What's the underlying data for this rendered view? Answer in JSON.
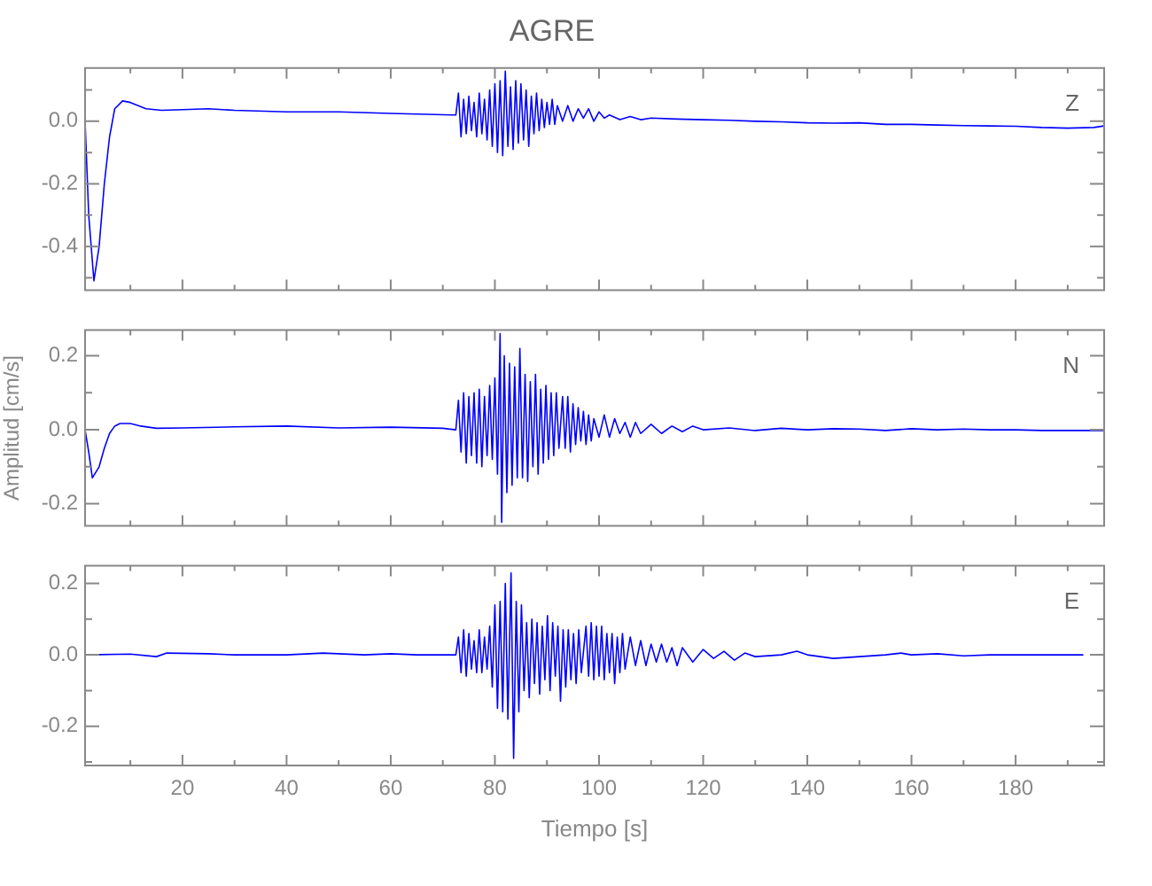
{
  "chart_data": [
    {
      "type": "line",
      "title": "AGRE",
      "annotations": [
        "Z"
      ],
      "tick_labels": "y",
      "marker": "none",
      "xlim": [
        1.3,
        197
      ],
      "xticks": [
        {
          "value": 10,
          "label": null
        },
        20,
        {
          "value": 30,
          "label": null
        },
        40,
        {
          "value": 50,
          "label": null
        },
        60,
        {
          "value": 70,
          "label": null
        },
        80,
        {
          "value": 90,
          "label": null
        },
        100,
        {
          "value": 110,
          "label": null
        },
        120,
        {
          "value": 130,
          "label": null
        },
        140,
        {
          "value": 150,
          "label": null
        },
        160,
        {
          "value": 170,
          "label": null
        },
        180,
        {
          "value": 190,
          "label": null
        }
      ],
      "ylim": [
        -0.54,
        0.17
      ],
      "yticks": [
        {
          "value": 0.1,
          "label": null
        },
        {
          "value": 0,
          "label": "0.0"
        },
        {
          "value": -0.1,
          "label": null
        },
        -0.2,
        {
          "value": -0.3,
          "label": null
        },
        -0.4,
        {
          "value": -0.5,
          "label": null
        }
      ],
      "series": [
        {
          "color": "#0000ff",
          "x": [
            1.3,
            2,
            3,
            4,
            5,
            6,
            7,
            8.5,
            10,
            13,
            16,
            20,
            25,
            30,
            40,
            50,
            60,
            72,
            72.5,
            73,
            73.5,
            74,
            74.5,
            75,
            75.5,
            76,
            76.5,
            77,
            77.5,
            78,
            78.5,
            79,
            79.5,
            80,
            80.5,
            81,
            81.5,
            82,
            82.5,
            83,
            83.5,
            84,
            84.5,
            85,
            85.5,
            86,
            86.5,
            87,
            87.5,
            88,
            88.5,
            89,
            89.5,
            90,
            90.5,
            91,
            91.5,
            92,
            93,
            94,
            95,
            96,
            97,
            98,
            99,
            100,
            101,
            102,
            104,
            106,
            108,
            110,
            115,
            120,
            125,
            130,
            135,
            140,
            145,
            150,
            155,
            160,
            165,
            170,
            175,
            180,
            185,
            190,
            195,
            197
          ],
          "values": [
            0.0,
            -0.3,
            -0.51,
            -0.4,
            -0.2,
            -0.05,
            0.04,
            0.065,
            0.06,
            0.04,
            0.035,
            0.037,
            0.04,
            0.035,
            0.03,
            0.03,
            0.025,
            0.02,
            0.02,
            0.09,
            -0.05,
            0.07,
            -0.04,
            0.08,
            -0.03,
            0.06,
            -0.05,
            0.09,
            -0.04,
            0.07,
            -0.06,
            0.1,
            -0.08,
            0.12,
            -0.1,
            0.13,
            -0.11,
            0.16,
            -0.08,
            0.11,
            -0.09,
            0.13,
            -0.07,
            0.12,
            -0.06,
            0.1,
            -0.08,
            0.08,
            -0.04,
            0.09,
            -0.03,
            0.07,
            -0.02,
            0.06,
            -0.01,
            0.07,
            -0.01,
            0.05,
            0.0,
            0.05,
            0.0,
            0.04,
            0.01,
            0.04,
            0.0,
            0.03,
            0.01,
            0.02,
            0.005,
            0.015,
            0.005,
            0.01,
            0.007,
            0.005,
            0.003,
            0.0,
            -0.002,
            -0.005,
            -0.006,
            -0.005,
            -0.01,
            -0.01,
            -0.012,
            -0.014,
            -0.015,
            -0.016,
            -0.02,
            -0.022,
            -0.02,
            -0.015
          ]
        }
      ]
    },
    {
      "type": "line",
      "ylabel": "Amplitud [cm/s]",
      "annotations": [
        "N"
      ],
      "tick_labels": "y",
      "marker": "none",
      "xlim": [
        1.3,
        197
      ],
      "xticks": [
        {
          "value": 10,
          "label": null
        },
        20,
        {
          "value": 30,
          "label": null
        },
        40,
        {
          "value": 50,
          "label": null
        },
        60,
        {
          "value": 70,
          "label": null
        },
        80,
        {
          "value": 90,
          "label": null
        },
        100,
        {
          "value": 110,
          "label": null
        },
        120,
        {
          "value": 130,
          "label": null
        },
        140,
        {
          "value": 150,
          "label": null
        },
        160,
        {
          "value": 170,
          "label": null
        },
        180,
        {
          "value": 190,
          "label": null
        }
      ],
      "ylim": [
        -0.26,
        0.27
      ],
      "yticks": [
        0.2,
        {
          "value": 0.1,
          "label": null
        },
        {
          "value": 0,
          "label": "0.0"
        },
        {
          "value": -0.1,
          "label": null
        },
        -0.2
      ],
      "series": [
        {
          "color": "#0000ff",
          "x": [
            1.3,
            2,
            2.7,
            4,
            5,
            6,
            7,
            8,
            10,
            12,
            15,
            20,
            30,
            40,
            50,
            60,
            70,
            72.5,
            73,
            73.5,
            74,
            74.5,
            75,
            75.5,
            76,
            76.5,
            77,
            77.5,
            78,
            78.5,
            79,
            79.5,
            80,
            80.5,
            81,
            81.3,
            81.8,
            82.3,
            82.8,
            83.3,
            83.8,
            84.3,
            84.8,
            85.3,
            85.8,
            86.3,
            86.8,
            87.3,
            87.8,
            88.3,
            88.8,
            89.3,
            89.8,
            90.3,
            90.8,
            91.3,
            91.8,
            92.3,
            93,
            93.5,
            94,
            94.5,
            95,
            95.5,
            96,
            96.5,
            97,
            97.5,
            98,
            98.5,
            99,
            100,
            101,
            102,
            103,
            104,
            105,
            106,
            107,
            108,
            110,
            112,
            114,
            116,
            118,
            120,
            125,
            130,
            135,
            140,
            145,
            150,
            155,
            160,
            165,
            170,
            175,
            180,
            185,
            190,
            197
          ],
          "values": [
            0.0,
            -0.06,
            -0.13,
            -0.1,
            -0.05,
            -0.01,
            0.01,
            0.017,
            0.017,
            0.01,
            0.004,
            0.005,
            0.008,
            0.01,
            0.005,
            0.007,
            0.004,
            0.0,
            0.08,
            -0.06,
            0.1,
            -0.09,
            0.09,
            -0.07,
            0.1,
            -0.09,
            0.11,
            -0.1,
            0.09,
            -0.07,
            0.12,
            -0.08,
            0.14,
            -0.12,
            0.26,
            -0.25,
            0.2,
            -0.17,
            0.18,
            -0.15,
            0.17,
            -0.13,
            0.22,
            -0.13,
            0.15,
            -0.14,
            0.13,
            -0.1,
            0.15,
            -0.12,
            0.11,
            -0.09,
            0.12,
            -0.08,
            0.1,
            -0.07,
            0.1,
            -0.05,
            0.09,
            -0.05,
            0.09,
            -0.06,
            0.07,
            -0.04,
            0.06,
            -0.03,
            0.05,
            -0.04,
            0.04,
            -0.03,
            0.03,
            -0.02,
            0.04,
            -0.02,
            0.03,
            -0.01,
            0.02,
            -0.02,
            0.02,
            -0.01,
            0.015,
            -0.01,
            0.01,
            -0.005,
            0.01,
            0.0,
            0.005,
            -0.002,
            0.004,
            0.0,
            0.003,
            0.002,
            -0.002,
            0.003,
            0.0,
            0.002,
            0.0,
            0.0,
            -0.002,
            -0.002,
            -0.002
          ]
        }
      ]
    },
    {
      "type": "line",
      "xlabel": "Tiempo [s]",
      "annotations": [
        "E"
      ],
      "marker": "none",
      "xlim": [
        1.3,
        197
      ],
      "xticks": [
        {
          "value": 10,
          "label": null
        },
        20,
        {
          "value": 30,
          "label": null
        },
        40,
        {
          "value": 50,
          "label": null
        },
        60,
        {
          "value": 70,
          "label": null
        },
        80,
        {
          "value": 90,
          "label": null
        },
        100,
        {
          "value": 110,
          "label": null
        },
        120,
        {
          "value": 130,
          "label": null
        },
        140,
        {
          "value": 150,
          "label": null
        },
        160,
        {
          "value": 170,
          "label": null
        },
        180,
        {
          "value": 190,
          "label": null
        }
      ],
      "ylim": [
        -0.31,
        0.25
      ],
      "yticks": [
        0.2,
        {
          "value": 0.1,
          "label": null
        },
        {
          "value": 0,
          "label": "0.0"
        },
        {
          "value": -0.1,
          "label": null
        },
        -0.2,
        {
          "value": -0.3,
          "label": null
        }
      ],
      "series": [
        {
          "color": "#0000ff",
          "x": [
            1.3,
            10,
            15,
            17,
            25,
            30,
            40,
            47,
            55,
            60,
            65,
            72.5,
            73,
            73.5,
            74,
            74.5,
            75,
            75.5,
            76,
            76.5,
            77,
            77.5,
            78,
            78.5,
            79,
            79.5,
            80,
            80.5,
            81,
            81.5,
            82,
            82.5,
            83.1,
            83.6,
            84.1,
            84.6,
            85.1,
            85.6,
            86.1,
            86.6,
            87.1,
            87.6,
            88.1,
            88.6,
            89.1,
            89.6,
            90.1,
            90.6,
            91.1,
            91.6,
            92.1,
            92.6,
            93.1,
            93.6,
            94.1,
            94.6,
            95.1,
            95.6,
            96.1,
            96.6,
            97.5,
            98,
            98.5,
            99,
            99.5,
            100,
            100.5,
            101,
            101.5,
            102,
            102.5,
            103,
            103.5,
            104,
            104.5,
            105,
            106,
            107,
            108,
            109,
            110,
            111,
            112,
            113,
            114,
            115,
            116,
            118,
            120,
            122,
            124,
            126,
            128,
            130,
            135,
            138,
            140,
            145,
            150,
            155,
            158,
            160,
            165,
            170,
            175,
            180,
            185,
            190,
            193
          ],
          "values": [
            0.0,
            0.002,
            -0.005,
            0.005,
            0.003,
            0.0,
            0.0,
            0.005,
            0.0,
            0.003,
            0.0,
            0.0,
            0.05,
            -0.05,
            0.07,
            -0.06,
            0.06,
            -0.04,
            0.04,
            -0.05,
            0.07,
            -0.05,
            0.05,
            -0.04,
            0.08,
            -0.09,
            0.14,
            -0.15,
            0.15,
            -0.16,
            0.2,
            -0.18,
            0.23,
            -0.29,
            0.15,
            -0.16,
            0.14,
            -0.1,
            0.09,
            -0.12,
            0.1,
            -0.08,
            0.09,
            -0.11,
            0.08,
            -0.07,
            0.11,
            -0.1,
            0.09,
            -0.06,
            0.08,
            -0.13,
            0.07,
            -0.09,
            0.07,
            -0.07,
            0.06,
            -0.08,
            0.07,
            -0.05,
            0.08,
            -0.06,
            0.09,
            -0.07,
            0.08,
            -0.06,
            0.08,
            -0.07,
            0.06,
            -0.05,
            0.06,
            -0.08,
            0.05,
            -0.05,
            0.06,
            -0.04,
            0.05,
            -0.03,
            0.04,
            -0.03,
            0.03,
            -0.02,
            0.03,
            -0.02,
            0.02,
            -0.03,
            0.02,
            -0.02,
            0.015,
            -0.01,
            0.01,
            -0.015,
            0.005,
            -0.005,
            0.0,
            0.01,
            0.0,
            -0.01,
            -0.005,
            0.0,
            0.005,
            0.0,
            0.003,
            -0.003,
            0.0,
            0.0,
            0.0,
            0.0,
            0.0
          ]
        }
      ]
    }
  ]
}
